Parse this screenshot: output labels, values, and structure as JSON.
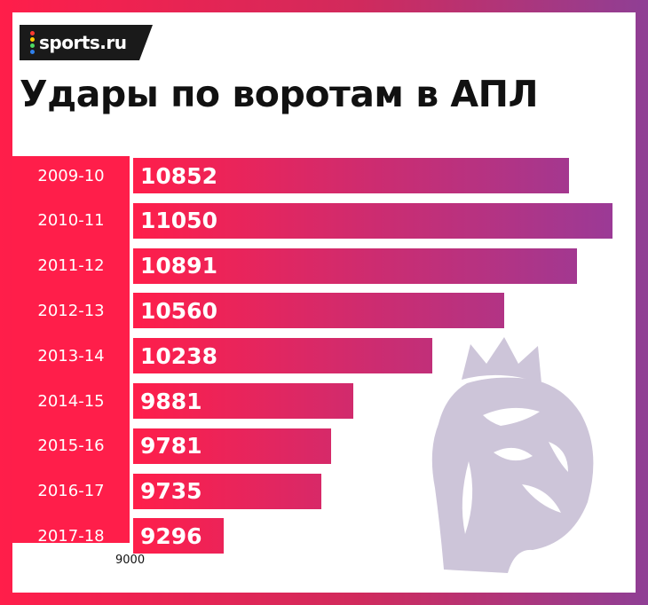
{
  "brand": {
    "name": "sports.ru",
    "dot_colors": [
      "#ff3b30",
      "#ffcc00",
      "#4cd964",
      "#2f80ed"
    ]
  },
  "colors": {
    "accent": "#ff1e4a",
    "bar_start": "#ff1e4a",
    "bar_end": "#9b3a96",
    "crest": "#cdc5d9"
  },
  "chart_data": {
    "type": "bar",
    "orientation": "horizontal",
    "title": "Удары по воротам в АПЛ",
    "categories": [
      "2009-10",
      "2010-11",
      "2011-12",
      "2012-13",
      "2013-14",
      "2014-15",
      "2015-16",
      "2016-17",
      "2017-18"
    ],
    "values": [
      10852,
      11050,
      10891,
      10560,
      10238,
      9881,
      9781,
      9735,
      9296
    ],
    "value_labels": [
      "10852",
      "11050",
      "10891",
      "10560",
      "10238",
      "9881",
      "9781",
      "9735",
      "9296"
    ],
    "xlim": [
      9000,
      11050
    ],
    "baseline_label": "9000",
    "xlabel": "",
    "ylabel": ""
  }
}
